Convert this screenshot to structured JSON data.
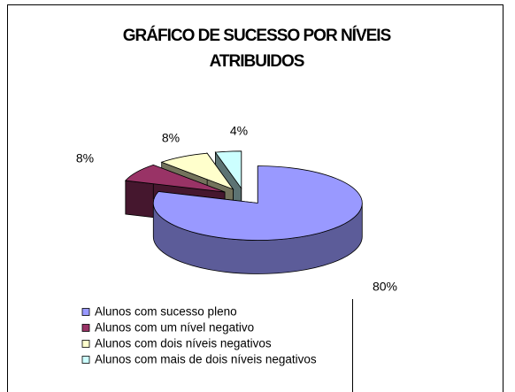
{
  "chart_data": {
    "type": "pie",
    "title": "GRÁFICO DE SUCESSO POR NÍVEIS ATRIBUIDOS",
    "categories": [
      "Alunos com sucesso pleno",
      "Alunos com um nível negativo",
      "Alunos com dois níveis negativos",
      "Alunos com mais de dois níveis negativos"
    ],
    "values": [
      80,
      8,
      8,
      4
    ],
    "value_labels": [
      "80%",
      "8%",
      "8%",
      "4%"
    ],
    "colors": [
      "#9999ff",
      "#993366",
      "#ffffcc",
      "#ccffff"
    ],
    "legend": "bottom"
  }
}
